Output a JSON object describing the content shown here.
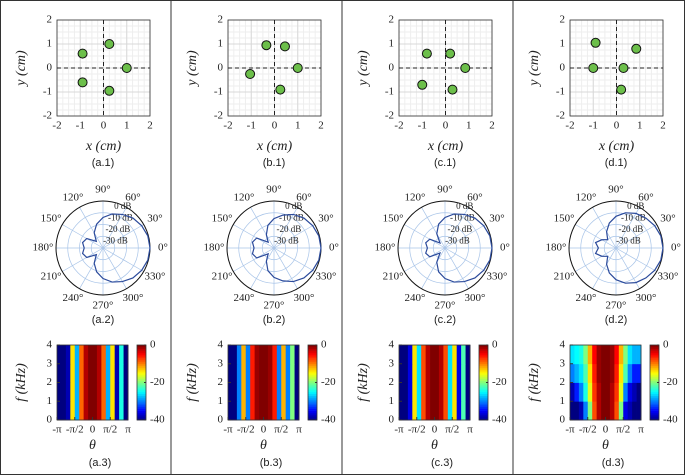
{
  "chart_data": [
    {
      "type": "scatter",
      "caption": "(a.1)",
      "xlabel": "x (cm)",
      "ylabel": "y (cm)",
      "x": [
        -0.9,
        0.25,
        1,
        -0.9,
        0.25
      ],
      "values": [
        0.6,
        1,
        0,
        -0.6,
        -0.95
      ],
      "color": "#6cbf4a",
      "xlim": [
        -2,
        2
      ],
      "ylim": [
        -2,
        2
      ],
      "xticks": [
        -2,
        -1,
        0,
        1,
        2
      ],
      "yticks": [
        -2,
        -1,
        0,
        1,
        2
      ],
      "grid": true
    },
    {
      "type": "polar",
      "caption": "(a.2)",
      "theta": [
        0,
        15,
        30,
        45,
        60,
        75,
        90,
        105,
        120,
        135,
        150,
        165,
        180,
        195,
        210,
        225,
        240,
        255,
        270,
        285,
        300,
        315,
        330,
        345
      ],
      "r": [
        0,
        -0.5,
        -2,
        -4,
        -7,
        -10,
        -14,
        -19,
        -25,
        -32,
        -24,
        -22,
        -24,
        -22,
        -24,
        -32,
        -25,
        -19,
        -14,
        -10,
        -7,
        -4,
        -2,
        -0.5
      ],
      "color": "#2b4a9b",
      "rlim": [
        -40,
        0
      ],
      "rticks": [
        {
          "value": 0,
          "label": "0 dB"
        },
        {
          "value": -10,
          "label": "-10 dB"
        },
        {
          "value": -20,
          "label": "-20 dB"
        },
        {
          "value": -30,
          "label": "-30 dB"
        }
      ],
      "thetaticks": [
        {
          "value": 0,
          "label": "0°"
        },
        {
          "value": 30,
          "label": "30°"
        },
        {
          "value": 60,
          "label": "60°"
        },
        {
          "value": 90,
          "label": "90°"
        },
        {
          "value": 120,
          "label": "120°"
        },
        {
          "value": 150,
          "label": "150°"
        },
        {
          "value": 180,
          "label": "180°"
        },
        {
          "value": 210,
          "label": "210°"
        },
        {
          "value": 240,
          "label": "240°"
        },
        {
          "value": 270,
          "label": "270°"
        },
        {
          "value": 300,
          "label": "300°"
        },
        {
          "value": 330,
          "label": "330°"
        }
      ]
    },
    {
      "type": "heatmap",
      "caption": "(a.3)",
      "xlabel": "θ",
      "ylabel": "f (kHz)",
      "xlim": [
        -3.1416,
        3.1416
      ],
      "ylim": [
        0,
        4
      ],
      "xticks": [
        {
          "value": -3.1416,
          "label": "-π"
        },
        {
          "value": -1.5708,
          "label": "-π/2"
        },
        0,
        {
          "value": 1.5708,
          "label": "π/2"
        },
        {
          "value": 3.1416,
          "label": "π"
        }
      ],
      "yticks": [
        0,
        1,
        2,
        3,
        4
      ],
      "z": [
        [
          -40,
          -40,
          -38,
          -14,
          -28,
          -9,
          -2,
          0,
          0,
          -2,
          -9,
          -28,
          -14,
          -38,
          -24,
          -40
        ],
        [
          -40,
          -40,
          -38,
          -14,
          -28,
          -9,
          -2,
          0,
          0,
          -2,
          -9,
          -28,
          -14,
          -38,
          -24,
          -40
        ],
        [
          -40,
          -40,
          -38,
          -14,
          -28,
          -9,
          -2,
          0,
          0,
          -2,
          -9,
          -28,
          -14,
          -38,
          -24,
          -40
        ],
        [
          -40,
          -40,
          -38,
          -14,
          -28,
          -9,
          -2,
          0,
          0,
          -2,
          -9,
          -28,
          -14,
          -38,
          -24,
          -40
        ]
      ],
      "clim": [
        -40,
        0
      ],
      "cticks": [
        0,
        -20,
        -40
      ],
      "colormap": "jet"
    },
    {
      "type": "scatter",
      "caption": "(b.1)",
      "xlabel": "x (cm)",
      "ylabel": "y (cm)",
      "x": [
        -0.35,
        0.45,
        1,
        -1.05,
        0.25
      ],
      "values": [
        0.95,
        0.9,
        0,
        -0.25,
        -0.9
      ],
      "color": "#6cbf4a",
      "xlim": [
        -2,
        2
      ],
      "ylim": [
        -2,
        2
      ],
      "xticks": [
        -2,
        -1,
        0,
        1,
        2
      ],
      "yticks": [
        -2,
        -1,
        0,
        1,
        2
      ],
      "grid": true
    },
    {
      "type": "polar",
      "caption": "(b.2)",
      "theta": [
        0,
        15,
        30,
        45,
        60,
        75,
        90,
        105,
        120,
        135,
        150,
        165,
        180,
        195,
        210,
        225,
        240,
        255,
        270,
        285,
        300,
        315,
        330,
        345
      ],
      "r": [
        0,
        -0.5,
        -2,
        -4,
        -7,
        -11,
        -15,
        -20,
        -27,
        -33,
        -23,
        -21,
        -23,
        -21,
        -23,
        -33,
        -27,
        -20,
        -15,
        -11,
        -7,
        -4,
        -2,
        -0.5
      ],
      "color": "#2b4a9b",
      "rlim": [
        -40,
        0
      ],
      "rticks": [
        {
          "value": 0,
          "label": "0 dB"
        },
        {
          "value": -10,
          "label": "-10 dB"
        },
        {
          "value": -20,
          "label": "-20 dB"
        },
        {
          "value": -30,
          "label": "-30 dB"
        }
      ],
      "thetaticks": [
        {
          "value": 0,
          "label": "0°"
        },
        {
          "value": 30,
          "label": "30°"
        },
        {
          "value": 60,
          "label": "60°"
        },
        {
          "value": 90,
          "label": "90°"
        },
        {
          "value": 120,
          "label": "120°"
        },
        {
          "value": 150,
          "label": "150°"
        },
        {
          "value": 180,
          "label": "180°"
        },
        {
          "value": 210,
          "label": "210°"
        },
        {
          "value": 240,
          "label": "240°"
        },
        {
          "value": 270,
          "label": "270°"
        },
        {
          "value": 300,
          "label": "300°"
        },
        {
          "value": 330,
          "label": "330°"
        }
      ]
    },
    {
      "type": "heatmap",
      "caption": "(b.3)",
      "xlabel": "θ",
      "ylabel": "f (kHz)",
      "xlim": [
        -3.1416,
        3.1416
      ],
      "ylim": [
        0,
        4
      ],
      "xticks": [
        {
          "value": -3.1416,
          "label": "-π"
        },
        {
          "value": -1.5708,
          "label": "-π/2"
        },
        0,
        {
          "value": 1.5708,
          "label": "π/2"
        },
        {
          "value": 3.1416,
          "label": "π"
        }
      ],
      "yticks": [
        0,
        1,
        2,
        3,
        4
      ],
      "z": [
        [
          -40,
          -40,
          -30,
          -12,
          -30,
          -6,
          -1,
          0,
          0,
          -1,
          -6,
          -30,
          -12,
          -30,
          -20,
          -40
        ],
        [
          -40,
          -40,
          -30,
          -12,
          -30,
          -6,
          -1,
          0,
          0,
          -1,
          -6,
          -30,
          -12,
          -30,
          -20,
          -40
        ],
        [
          -40,
          -40,
          -30,
          -12,
          -30,
          -6,
          -1,
          0,
          0,
          -1,
          -6,
          -30,
          -12,
          -30,
          -20,
          -40
        ],
        [
          -40,
          -40,
          -30,
          -12,
          -30,
          -6,
          -1,
          0,
          0,
          -1,
          -6,
          -30,
          -12,
          -30,
          -20,
          -40
        ]
      ],
      "clim": [
        -40,
        0
      ],
      "cticks": [
        0,
        -20,
        -40
      ],
      "colormap": "jet"
    },
    {
      "type": "scatter",
      "caption": "(c.1)",
      "xlabel": "x (cm)",
      "ylabel": "y (cm)",
      "x": [
        -0.8,
        0.2,
        0.85,
        -1,
        0.3
      ],
      "values": [
        0.6,
        0.6,
        0,
        -0.7,
        -0.9
      ],
      "color": "#6cbf4a",
      "xlim": [
        -2,
        2
      ],
      "ylim": [
        -2,
        2
      ],
      "xticks": [
        -2,
        -1,
        0,
        1,
        2
      ],
      "yticks": [
        -2,
        -1,
        0,
        1,
        2
      ],
      "grid": true
    },
    {
      "type": "polar",
      "caption": "(c.2)",
      "theta": [
        0,
        15,
        30,
        45,
        60,
        75,
        90,
        105,
        120,
        135,
        150,
        165,
        180,
        195,
        210,
        225,
        240,
        255,
        270,
        285,
        300,
        315,
        330,
        345
      ],
      "r": [
        0,
        -0.5,
        -2,
        -4,
        -7,
        -10,
        -14,
        -19,
        -26,
        -34,
        -25,
        -23,
        -25,
        -23,
        -25,
        -34,
        -26,
        -19,
        -14,
        -10,
        -7,
        -4,
        -2,
        -0.5
      ],
      "color": "#2b4a9b",
      "rlim": [
        -40,
        0
      ],
      "rticks": [
        {
          "value": 0,
          "label": "0 dB"
        },
        {
          "value": -10,
          "label": "-10 dB"
        },
        {
          "value": -20,
          "label": "-20 dB"
        },
        {
          "value": -30,
          "label": "-30 dB"
        }
      ],
      "thetaticks": [
        {
          "value": 0,
          "label": "0°"
        },
        {
          "value": 30,
          "label": "30°"
        },
        {
          "value": 60,
          "label": "60°"
        },
        {
          "value": 90,
          "label": "90°"
        },
        {
          "value": 120,
          "label": "120°"
        },
        {
          "value": 150,
          "label": "150°"
        },
        {
          "value": 180,
          "label": "180°"
        },
        {
          "value": 210,
          "label": "210°"
        },
        {
          "value": 240,
          "label": "240°"
        },
        {
          "value": 270,
          "label": "270°"
        },
        {
          "value": 300,
          "label": "300°"
        },
        {
          "value": 330,
          "label": "330°"
        }
      ]
    },
    {
      "type": "heatmap",
      "caption": "(c.3)",
      "xlabel": "θ",
      "ylabel": "f (kHz)",
      "xlim": [
        -3.1416,
        3.1416
      ],
      "ylim": [
        0,
        4
      ],
      "xticks": [
        {
          "value": -3.1416,
          "label": "-π"
        },
        {
          "value": -1.5708,
          "label": "-π/2"
        },
        0,
        {
          "value": 1.5708,
          "label": "π/2"
        },
        {
          "value": 3.1416,
          "label": "π"
        }
      ],
      "yticks": [
        0,
        1,
        2,
        3,
        4
      ],
      "z": [
        [
          -40,
          -40,
          -36,
          -14,
          -26,
          -8,
          -2,
          0,
          0,
          -2,
          -8,
          -26,
          -14,
          -36,
          -22,
          -40
        ],
        [
          -40,
          -40,
          -36,
          -14,
          -26,
          -8,
          -2,
          0,
          0,
          -2,
          -8,
          -26,
          -14,
          -36,
          -22,
          -40
        ],
        [
          -40,
          -40,
          -36,
          -14,
          -26,
          -8,
          -2,
          0,
          0,
          -2,
          -8,
          -26,
          -14,
          -36,
          -22,
          -40
        ],
        [
          -40,
          -40,
          -36,
          -14,
          -26,
          -8,
          -2,
          0,
          0,
          -2,
          -8,
          -26,
          -14,
          -36,
          -22,
          -40
        ]
      ],
      "clim": [
        -40,
        0
      ],
      "cticks": [
        0,
        -20,
        -40
      ],
      "colormap": "jet"
    },
    {
      "type": "scatter",
      "caption": "(d.1)",
      "xlabel": "x (cm)",
      "ylabel": "y (cm)",
      "x": [
        -0.9,
        0.85,
        -1,
        0.3,
        0.2
      ],
      "values": [
        1.05,
        0.8,
        0,
        0,
        -0.9
      ],
      "color": "#6cbf4a",
      "xlim": [
        -2,
        2
      ],
      "ylim": [
        -2,
        2
      ],
      "xticks": [
        -2,
        -1,
        0,
        1,
        2
      ],
      "yticks": [
        -2,
        -1,
        0,
        1,
        2
      ],
      "grid": true
    },
    {
      "type": "polar",
      "caption": "(d.2)",
      "theta": [
        0,
        15,
        30,
        45,
        60,
        75,
        90,
        105,
        120,
        135,
        150,
        165,
        180,
        195,
        210,
        225,
        240,
        255,
        270,
        285,
        300,
        315,
        330,
        345
      ],
      "r": [
        0,
        -0.5,
        -2,
        -4,
        -6,
        -9,
        -13,
        -18,
        -24,
        -30,
        -26,
        -22,
        -25,
        -22,
        -26,
        -30,
        -24,
        -18,
        -13,
        -9,
        -6,
        -4,
        -2,
        -0.5
      ],
      "color": "#2b4a9b",
      "rlim": [
        -40,
        0
      ],
      "rticks": [
        {
          "value": 0,
          "label": "0 dB"
        },
        {
          "value": -10,
          "label": "-10 dB"
        },
        {
          "value": -20,
          "label": "-20 dB"
        },
        {
          "value": -30,
          "label": "-30 dB"
        }
      ],
      "thetaticks": [
        {
          "value": 0,
          "label": "0°"
        },
        {
          "value": 30,
          "label": "30°"
        },
        {
          "value": 60,
          "label": "60°"
        },
        {
          "value": 90,
          "label": "90°"
        },
        {
          "value": 120,
          "label": "120°"
        },
        {
          "value": 150,
          "label": "150°"
        },
        {
          "value": 180,
          "label": "180°"
        },
        {
          "value": 210,
          "label": "210°"
        },
        {
          "value": 240,
          "label": "240°"
        },
        {
          "value": 270,
          "label": "270°"
        },
        {
          "value": 300,
          "label": "300°"
        },
        {
          "value": 330,
          "label": "330°"
        }
      ]
    },
    {
      "type": "heatmap",
      "caption": "(d.3)",
      "xlabel": "θ",
      "ylabel": "f (kHz)",
      "xlim": [
        -3.1416,
        3.1416
      ],
      "ylim": [
        0,
        4
      ],
      "xticks": [
        {
          "value": -3.1416,
          "label": "-π"
        },
        {
          "value": -1.5708,
          "label": "-π/2"
        },
        0,
        {
          "value": 1.5708,
          "label": "π/2"
        },
        {
          "value": 3.1416,
          "label": "π"
        }
      ],
      "yticks": [
        0,
        1,
        2,
        3,
        4
      ],
      "z": [
        [
          -40,
          -40,
          -38,
          -30,
          -20,
          -8,
          -2,
          0,
          0,
          -2,
          -8,
          -20,
          -36,
          -38,
          -40,
          -40
        ],
        [
          -38,
          -34,
          -30,
          -24,
          -16,
          -7,
          -2,
          0,
          0,
          -2,
          -7,
          -16,
          -30,
          -36,
          -38,
          -40
        ],
        [
          -30,
          -28,
          -26,
          -22,
          -14,
          -6,
          -1,
          0,
          0,
          -1,
          -6,
          -14,
          -22,
          -30,
          -34,
          -34
        ],
        [
          -26,
          -25,
          -24,
          -20,
          -12,
          -5,
          -1,
          0,
          0,
          -1,
          -5,
          -12,
          -20,
          -26,
          -28,
          -28
        ]
      ],
      "clim": [
        -40,
        0
      ],
      "cticks": [
        0,
        -20,
        -40
      ],
      "colormap": "jet"
    }
  ]
}
